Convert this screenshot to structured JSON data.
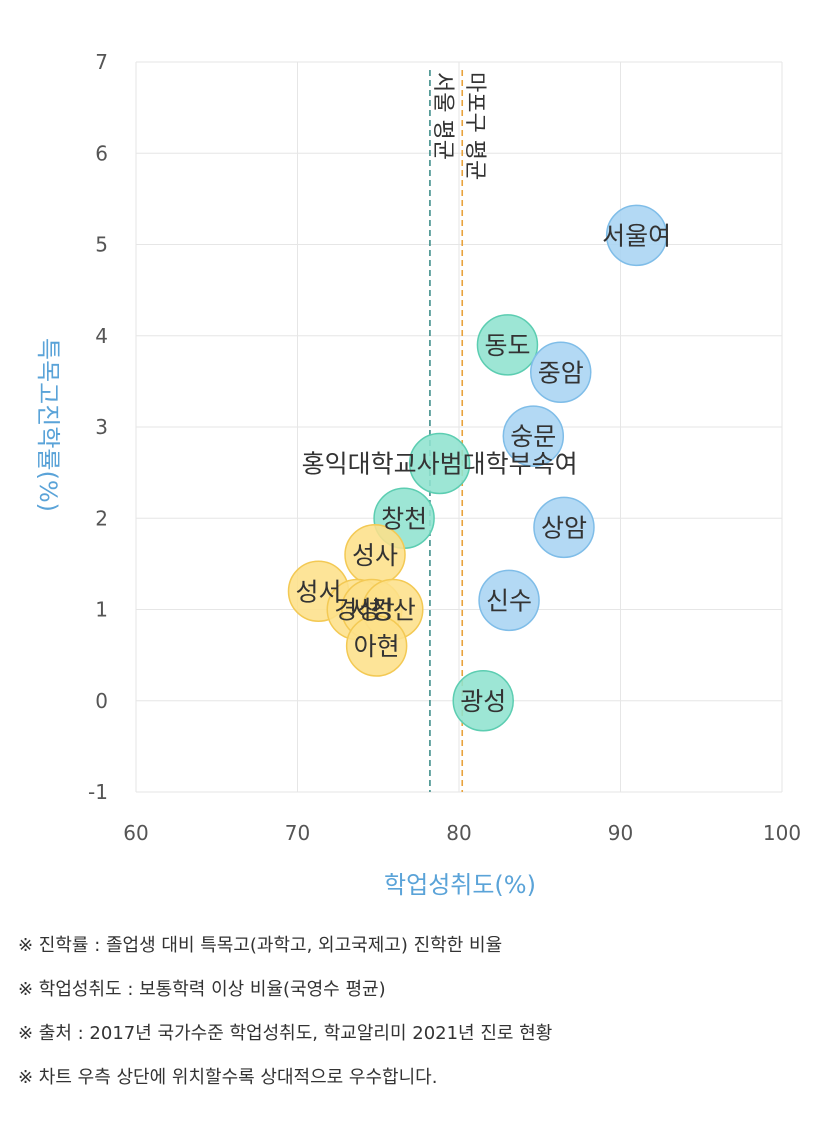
{
  "chart_data": {
    "type": "scatter",
    "xlabel": "학업성취도(%)",
    "ylabel": "특목고진학률(%)",
    "xlim": [
      60,
      100
    ],
    "ylim": [
      -1,
      7
    ],
    "xticks": [
      "60",
      "70",
      "80",
      "90",
      "100"
    ],
    "yticks": [
      "-1",
      "0",
      "1",
      "2",
      "3",
      "4",
      "5",
      "6",
      "7"
    ],
    "grid": true,
    "reference_lines": [
      {
        "label": "서울 평균",
        "x": 78.2,
        "color": "#3e8e8a"
      },
      {
        "label": "마포구 평균",
        "x": 80.2,
        "color": "#e8a33d"
      }
    ],
    "points": [
      {
        "label": "서울여",
        "x": 91.0,
        "y": 5.1,
        "group": "blue"
      },
      {
        "label": "동도",
        "x": 83.0,
        "y": 3.9,
        "group": "teal"
      },
      {
        "label": "중암",
        "x": 86.3,
        "y": 3.6,
        "group": "blue"
      },
      {
        "label": "숭문",
        "x": 84.6,
        "y": 2.9,
        "group": "blue"
      },
      {
        "label": "홍익대학교사범대학부속여",
        "x": 78.8,
        "y": 2.6,
        "group": "teal"
      },
      {
        "label": "상암",
        "x": 86.5,
        "y": 1.9,
        "group": "blue"
      },
      {
        "label": "창천",
        "x": 76.6,
        "y": 2.0,
        "group": "teal"
      },
      {
        "label": "성사",
        "x": 74.8,
        "y": 1.6,
        "group": "yellow"
      },
      {
        "label": "성서",
        "x": 71.3,
        "y": 1.2,
        "group": "yellow"
      },
      {
        "label": "경성",
        "x": 73.7,
        "y": 1.0,
        "group": "yellow"
      },
      {
        "label": "서강",
        "x": 74.6,
        "y": 1.0,
        "group": "yellow"
      },
      {
        "label": "성산",
        "x": 75.9,
        "y": 1.0,
        "group": "yellow"
      },
      {
        "label": "아현",
        "x": 74.9,
        "y": 0.6,
        "group": "yellow"
      },
      {
        "label": "신수",
        "x": 83.1,
        "y": 1.1,
        "group": "blue"
      },
      {
        "label": "광성",
        "x": 81.5,
        "y": 0.0,
        "group": "teal"
      }
    ],
    "colors": {
      "blue": "#a9d4f2",
      "blue_stroke": "#7fbde8",
      "teal": "#8fe3cf",
      "teal_stroke": "#5ccdb1",
      "yellow": "#fde08a",
      "yellow_stroke": "#f3c954",
      "grid": "#e6e6e6",
      "axis_title": "#5aa3d8"
    }
  },
  "notes": [
    "※ 진학률 : 졸업생 대비 특목고(과학고, 외고국제고) 진학한 비율",
    "※ 학업성취도 : 보통학력 이상 비율(국영수 평균)",
    "※ 출처 : 2017년 국가수준 학업성취도, 학교알리미 2021년 진로 현황",
    "※ 차트 우측 상단에 위치할수록 상대적으로 우수합니다."
  ]
}
